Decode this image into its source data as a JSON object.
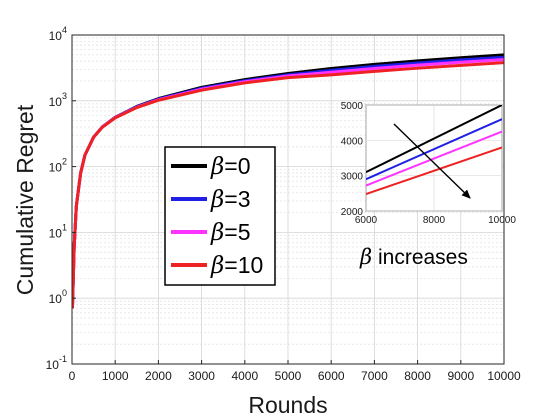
{
  "chart_data": [
    {
      "type": "line",
      "title": "",
      "xlabel": "Rounds",
      "ylabel": "Cumulative Regret",
      "yscale": "log",
      "xlim": [
        0,
        10000
      ],
      "ylim": [
        0.1,
        10000
      ],
      "grid": true,
      "legend_position": "left-center",
      "x_ticks": [
        "0",
        "1000",
        "2000",
        "3000",
        "4000",
        "5000",
        "6000",
        "7000",
        "8000",
        "9000",
        "10000"
      ],
      "y_ticks": [
        {
          "base": "10",
          "exp": "-1",
          "value": 0.1
        },
        {
          "base": "10",
          "exp": "0",
          "value": 1
        },
        {
          "base": "10",
          "exp": "1",
          "value": 10
        },
        {
          "base": "10",
          "exp": "2",
          "value": 100
        },
        {
          "base": "10",
          "exp": "3",
          "value": 1000
        },
        {
          "base": "10",
          "exp": "4",
          "value": 10000
        }
      ],
      "x": [
        10,
        50,
        100,
        200,
        300,
        500,
        700,
        1000,
        1500,
        2000,
        3000,
        4000,
        5000,
        6000,
        7000,
        8000,
        9000,
        10000
      ],
      "series": [
        {
          "name": "β=0",
          "color": "#000000",
          "values": [
            0.7,
            6,
            25,
            80,
            150,
            280,
            400,
            560,
            820,
            1080,
            1600,
            2100,
            2600,
            3100,
            3570,
            4050,
            4520,
            5000
          ]
        },
        {
          "name": "β=3",
          "color": "#1f1fe6",
          "values": [
            0.7,
            6,
            25,
            80,
            150,
            280,
            400,
            560,
            810,
            1060,
            1550,
            2020,
            2480,
            2900,
            3330,
            3760,
            4180,
            4600
          ]
        },
        {
          "name": "β=5",
          "color": "#ff33ff",
          "values": [
            0.7,
            6,
            25,
            80,
            150,
            280,
            400,
            555,
            800,
            1040,
            1500,
            1950,
            2380,
            2720,
            3100,
            3480,
            3860,
            4250
          ]
        },
        {
          "name": "β=10",
          "color": "#ee2222",
          "values": [
            0.7,
            6,
            25,
            80,
            150,
            280,
            395,
            550,
            790,
            1020,
            1450,
            1870,
            2250,
            2480,
            2800,
            3130,
            3460,
            3800
          ]
        }
      ],
      "legend": [
        {
          "symbol": "β",
          "rest": "=0",
          "color": "#000000"
        },
        {
          "symbol": "β",
          "rest": "=3",
          "color": "#1f1fe6"
        },
        {
          "symbol": "β",
          "rest": "=5",
          "color": "#ff33ff"
        },
        {
          "symbol": "β",
          "rest": "=10",
          "color": "#ee2222"
        }
      ]
    },
    {
      "type": "line",
      "title": "",
      "xlim": [
        6000,
        10000
      ],
      "ylim": [
        2000,
        5000
      ],
      "x_ticks": [
        "6000",
        "8000",
        "10000"
      ],
      "y_ticks": [
        "2000",
        "3000",
        "4000",
        "5000"
      ],
      "x": [
        6000,
        10000
      ],
      "series": [
        {
          "name": "β=0",
          "color": "#000000",
          "values": [
            3100,
            5000
          ]
        },
        {
          "name": "β=3",
          "color": "#1f1fe6",
          "values": [
            2900,
            4600
          ]
        },
        {
          "name": "β=5",
          "color": "#ff33ff",
          "values": [
            2720,
            4250
          ]
        },
        {
          "name": "β=10",
          "color": "#ee2222",
          "values": [
            2480,
            3800
          ]
        }
      ],
      "annotation": {
        "symbol": "β",
        "text": " increases"
      }
    }
  ]
}
